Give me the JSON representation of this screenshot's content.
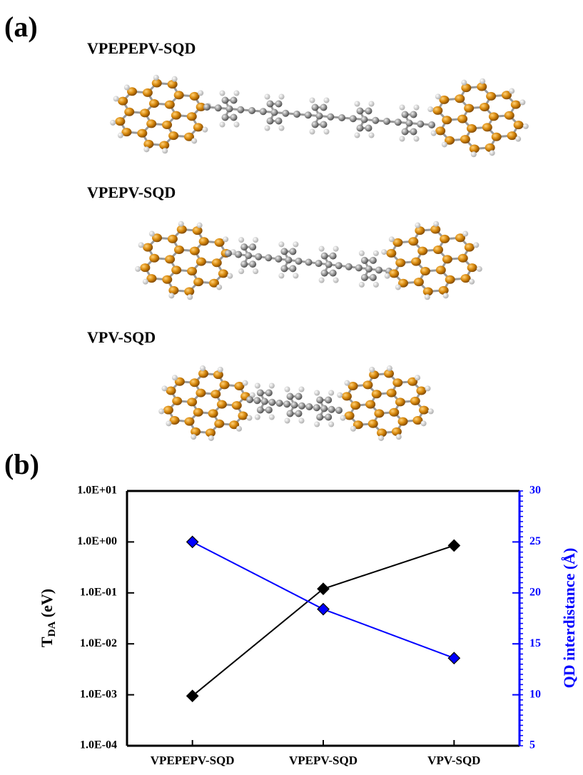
{
  "panel_a": {
    "label": "(a)",
    "molecules": [
      "VPEPEPV-SQD",
      "VPEPV-SQD",
      "VPV-SQD"
    ]
  },
  "chart_data": {
    "type": "line",
    "panel_label": "(b)",
    "categories": [
      "VPEPEPV-SQD",
      "VPEPV-SQD",
      "VPV-SQD"
    ],
    "ylabel": [
      "T",
      "DA",
      " (eV)"
    ],
    "y2label": "QD interdistance (Å)",
    "ylog": true,
    "ylim": [
      0.0001,
      10
    ],
    "yticks": [
      {
        "value": 0.0001,
        "label": "1.0E-04"
      },
      {
        "value": 0.001,
        "label": "1.0E-03"
      },
      {
        "value": 0.01,
        "label": "1.0E-02"
      },
      {
        "value": 0.1,
        "label": "1.0E-01"
      },
      {
        "value": 1,
        "label": "1.0E+00"
      },
      {
        "value": 10,
        "label": "1.0E+01"
      }
    ],
    "y2lim": [
      5,
      30
    ],
    "y2ticks": [
      5,
      10,
      15,
      20,
      25,
      30
    ],
    "y2color": "#0000ff",
    "series": [
      {
        "color": "#000000",
        "values": [
          0.00095,
          0.12,
          0.85
        ]
      },
      {
        "color": "#0000ff",
        "axis": "y2",
        "values": [
          25,
          18.4,
          13.6
        ]
      }
    ]
  }
}
